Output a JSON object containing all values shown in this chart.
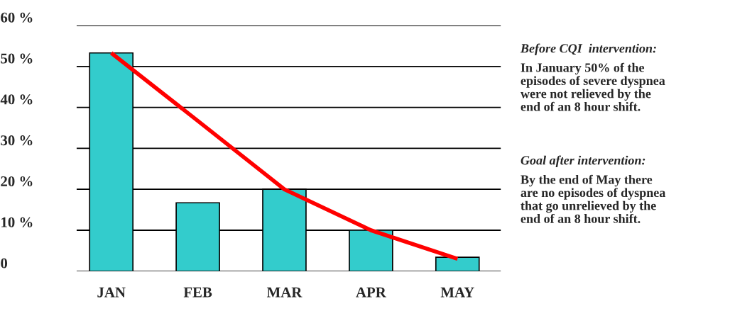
{
  "chart_data": {
    "type": "bar",
    "categories": [
      "JAN",
      "FEB",
      "MAR",
      "APR",
      "MAY"
    ],
    "series": [
      {
        "color": "#33cccc",
        "values": [
          53.3,
          16.7,
          20,
          10,
          3.4
        ]
      },
      {
        "type": "line",
        "color": "#ff0000",
        "values": [
          53.3,
          36.7,
          20,
          10,
          3
        ]
      }
    ],
    "ylim": [
      0,
      60
    ],
    "yticks": [
      {
        "value": 0,
        "label": "0"
      },
      {
        "value": 10,
        "label": "10 %"
      },
      {
        "value": 20,
        "label": "20 %"
      },
      {
        "value": 30,
        "label": "30 %"
      },
      {
        "value": 40,
        "label": "40 %"
      },
      {
        "value": 50,
        "label": "50 %"
      },
      {
        "value": 60,
        "label": "60 %"
      }
    ],
    "grid": "y",
    "marker": "none",
    "line_style": "solid",
    "annotations": [
      "Before CQI  intervention:",
      "In January 50% of the\nepisodes of severe dyspnea\nwere not relieved by the\nend of an 8 hour shift.",
      "Goal after intervention:",
      "By the end of May there\nare no episodes of dyspnea\nthat go unrelieved by the\nend of an 8 hour shift."
    ]
  }
}
